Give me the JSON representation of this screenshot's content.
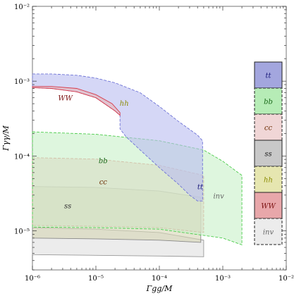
{
  "chart_data": {
    "type": "area",
    "title": "",
    "xlabel": "Γgg/M",
    "ylabel": "Γγγ/M",
    "xscale": "log",
    "yscale": "log",
    "xlim": [
      1e-06,
      0.01
    ],
    "ylim": [
      3e-06,
      0.01
    ],
    "x_ticks": [
      {
        "value": 1e-06,
        "label": "10⁻⁶"
      },
      {
        "value": 1e-05,
        "label": "10⁻⁵"
      },
      {
        "value": 0.0001,
        "label": "10⁻⁴"
      },
      {
        "value": 0.001,
        "label": "10⁻³"
      },
      {
        "value": 0.01,
        "label": "10⁻²"
      }
    ],
    "y_ticks": [
      {
        "value": 1e-05,
        "label": "10⁻⁵"
      },
      {
        "value": 0.0001,
        "label": "10⁻⁴"
      },
      {
        "value": 0.001,
        "label": "10⁻³"
      },
      {
        "value": 0.01,
        "label": "10⁻²"
      }
    ],
    "grid": false,
    "legend_position": "right",
    "series": [
      {
        "name": "tt",
        "fill": "#b9bdf0",
        "stroke": "#6f74d6",
        "dash": true,
        "label_color": "#1a1a7a",
        "label_at": [
          0.00044,
          3.6e-05
        ],
        "polygon": [
          [
            1e-06,
            0.00125
          ],
          [
            2e-06,
            0.00125
          ],
          [
            5e-06,
            0.0012
          ],
          [
            1e-05,
            0.0011
          ],
          [
            2e-05,
            0.00095
          ],
          [
            5e-05,
            0.0007
          ],
          [
            0.0001,
            0.00046
          ],
          [
            0.0002,
            0.00029
          ],
          [
            0.0004,
            0.00019
          ],
          [
            0.00048,
            0.00016
          ],
          [
            0.00048,
            2.5e-05
          ],
          [
            0.0004,
            2.5e-05
          ],
          [
            0.0003,
            3e-05
          ],
          [
            0.0002,
            4.2e-05
          ],
          [
            0.0001,
            7e-05
          ],
          [
            5e-05,
            0.00012
          ],
          [
            3e-05,
            0.00018
          ],
          [
            2.4e-05,
            0.00023
          ],
          [
            2.4e-05,
            0.00035
          ],
          [
            2e-05,
            0.0004
          ],
          [
            1e-05,
            0.0006
          ],
          [
            5e-06,
            0.00072
          ],
          [
            2e-06,
            0.0008
          ],
          [
            1e-06,
            0.00082
          ]
        ]
      },
      {
        "name": "WW",
        "fill": "#eab5b8",
        "stroke": "#d63b4b",
        "dash": false,
        "label_color": "#7a1010",
        "label_at": [
          3.3e-06,
          0.00055
        ],
        "polygon": [
          [
            1e-06,
            0.00085
          ],
          [
            2e-06,
            0.00085
          ],
          [
            5e-06,
            0.0008
          ],
          [
            1e-05,
            0.00066
          ],
          [
            1.8e-05,
            0.0005
          ],
          [
            2.4e-05,
            0.00038
          ],
          [
            2.4e-05,
            0.00035
          ],
          [
            2e-05,
            0.0004
          ],
          [
            1e-05,
            0.0006
          ],
          [
            5e-06,
            0.00072
          ],
          [
            2e-06,
            0.0008
          ],
          [
            1e-06,
            0.00082
          ]
        ]
      },
      {
        "name": "hh",
        "fill": "none",
        "stroke": "none",
        "dash": false,
        "label_color": "#8a8a00",
        "label_at": [
          2.8e-05,
          0.00047
        ],
        "polygon": []
      },
      {
        "name": "bb",
        "fill": "#c8f0c8",
        "stroke": "#4ccc4c",
        "dash": true,
        "label_color": "#1a6a1a",
        "label_at": [
          1.3e-05,
          8e-05
        ],
        "polygon": [
          [
            1e-06,
            0.00021
          ],
          [
            1e-05,
            0.000195
          ],
          [
            0.0001,
            0.00016
          ],
          [
            0.0005,
            0.00012
          ],
          [
            0.001,
            8.5e-05
          ],
          [
            0.002,
            5.5e-05
          ],
          [
            0.002,
            6.5e-06
          ],
          [
            0.001,
            8e-06
          ],
          [
            0.0001,
            1.05e-05
          ],
          [
            1e-05,
            1.1e-05
          ],
          [
            1e-06,
            1.12e-05
          ]
        ]
      },
      {
        "name": "cc",
        "fill": "#f2c0c0",
        "stroke": "#e07a7a",
        "dash": true,
        "label_color": "#6a2a00",
        "label_at": [
          1.3e-05,
          4.2e-05
        ],
        "polygon": [
          [
            1e-06,
            9.5e-05
          ],
          [
            1e-05,
            9.1e-05
          ],
          [
            0.0001,
            7.5e-05
          ],
          [
            0.0005,
            5.5e-05
          ],
          [
            0.0005,
            9.5e-06
          ],
          [
            0.0001,
            1.1e-05
          ],
          [
            1e-05,
            1.15e-05
          ],
          [
            1e-06,
            1.18e-05
          ]
        ]
      },
      {
        "name": "ss",
        "fill": "#d6d6b4",
        "stroke": "#888888",
        "dash": false,
        "label_color": "#333333",
        "label_at": [
          3.6e-06,
          2e-05
        ],
        "polygon": [
          [
            1e-06,
            3.9e-05
          ],
          [
            1e-05,
            3.8e-05
          ],
          [
            0.0001,
            3.4e-05
          ],
          [
            0.00045,
            2.8e-05
          ],
          [
            0.00045,
            7e-06
          ],
          [
            0.0001,
            7.5e-06
          ],
          [
            1e-05,
            7.8e-06
          ],
          [
            1e-06,
            8e-06
          ]
        ]
      },
      {
        "name": "inv",
        "fill": "#e9e9e9",
        "stroke": "#999999",
        "dash": false,
        "label_color": "#666666",
        "label_at": [
          0.00086,
          2.7e-05
        ],
        "polygon": [
          [
            1e-06,
            1.1e-05
          ],
          [
            1e-05,
            1.05e-05
          ],
          [
            0.0001,
            9.5e-06
          ],
          [
            0.0005,
            7.5e-06
          ],
          [
            0.0005,
            4.5e-06
          ],
          [
            0.0001,
            4.6e-06
          ],
          [
            1e-05,
            4.7e-06
          ],
          [
            1e-06,
            4.8e-06
          ]
        ]
      }
    ],
    "legend": [
      {
        "label": "tt",
        "fill": "#a3a6de",
        "dash": false,
        "color": "#1a1a7a"
      },
      {
        "label": "bb",
        "fill": "#b6ecb6",
        "dash": true,
        "color": "#1a6a1a"
      },
      {
        "label": "cc",
        "fill": "#f0d6d6",
        "dash": true,
        "color": "#6a2a00"
      },
      {
        "label": "ss",
        "fill": "#c8c8c8",
        "dash": false,
        "color": "#222222"
      },
      {
        "label": "hh",
        "fill": "#e6e6b0",
        "dash": true,
        "color": "#8a8a00"
      },
      {
        "label": "WW",
        "fill": "#e8a7aa",
        "dash": false,
        "color": "#7a1010"
      },
      {
        "label": "inv",
        "fill": "#ececec",
        "dash": true,
        "color": "#666666"
      }
    ]
  }
}
